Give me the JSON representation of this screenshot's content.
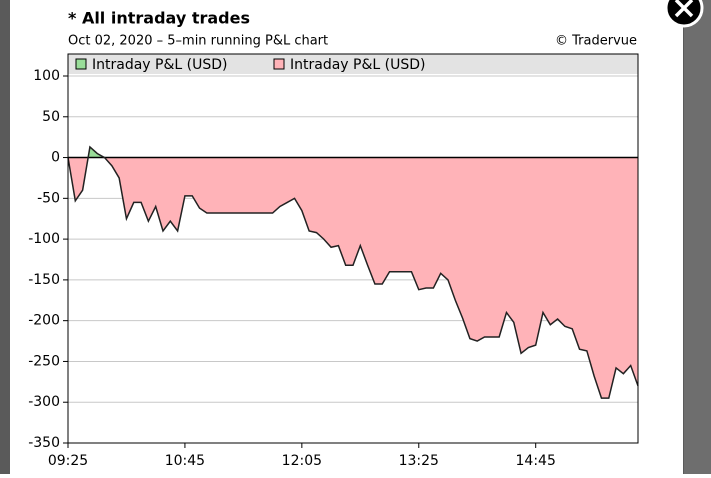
{
  "chart_data": {
    "type": "area",
    "title": "* All intraday trades",
    "subtitle": "Oct 02, 2020 – 5–min running P&L chart",
    "credit": "© Tradervue",
    "legend": [
      {
        "name": "Intraday P&L (USD)",
        "color": "#99dd99"
      },
      {
        "name": "Intraday P&L (USD)",
        "color": "#ffb3b8"
      }
    ],
    "x": [
      565,
      570,
      575,
      580,
      585,
      590,
      595,
      600,
      605,
      610,
      615,
      620,
      625,
      630,
      635,
      640,
      645,
      650,
      655,
      660,
      665,
      670,
      675,
      680,
      685,
      690,
      695,
      700,
      705,
      710,
      715,
      720,
      725,
      730,
      735,
      740,
      745,
      750,
      755,
      760,
      765,
      770,
      775,
      780,
      785,
      790,
      795,
      800,
      805,
      810,
      815,
      820,
      825,
      830,
      835,
      840,
      845,
      850,
      855,
      860,
      865,
      870,
      875,
      880,
      885,
      890,
      895,
      900,
      905,
      910,
      915,
      920,
      925,
      930,
      935,
      940,
      945,
      950,
      955
    ],
    "values": [
      0,
      -53,
      -40,
      13,
      5,
      0,
      -10,
      -25,
      -75,
      -55,
      -55,
      -78,
      -60,
      -90,
      -78,
      -90,
      -47,
      -47,
      -62,
      -68,
      -68,
      -68,
      -68,
      -68,
      -68,
      -68,
      -68,
      -68,
      -68,
      -60,
      -55,
      -50,
      -65,
      -90,
      -92,
      -100,
      -110,
      -108,
      -132,
      -132,
      -108,
      -132,
      -155,
      -155,
      -140,
      -140,
      -140,
      -140,
      -162,
      -160,
      -160,
      -142,
      -150,
      -175,
      -197,
      -222,
      -225,
      -220,
      -220,
      -220,
      -190,
      -202,
      -240,
      -233,
      -230,
      -190,
      -205,
      -198,
      -207,
      -210,
      -235,
      -237,
      -268,
      -295,
      -295,
      -258,
      -265,
      -255,
      -280
    ],
    "xlim": [
      565,
      955
    ],
    "xticks": [
      {
        "value": 565,
        "label": "09:25"
      },
      {
        "value": 645,
        "label": "10:45"
      },
      {
        "value": 725,
        "label": "12:05"
      },
      {
        "value": 805,
        "label": "13:25"
      },
      {
        "value": 885,
        "label": "14:45"
      }
    ],
    "ylim": [
      -350,
      100
    ],
    "yticks": [
      -350,
      -300,
      -250,
      -200,
      -150,
      -100,
      -50,
      0,
      50,
      100
    ],
    "grid": true
  }
}
